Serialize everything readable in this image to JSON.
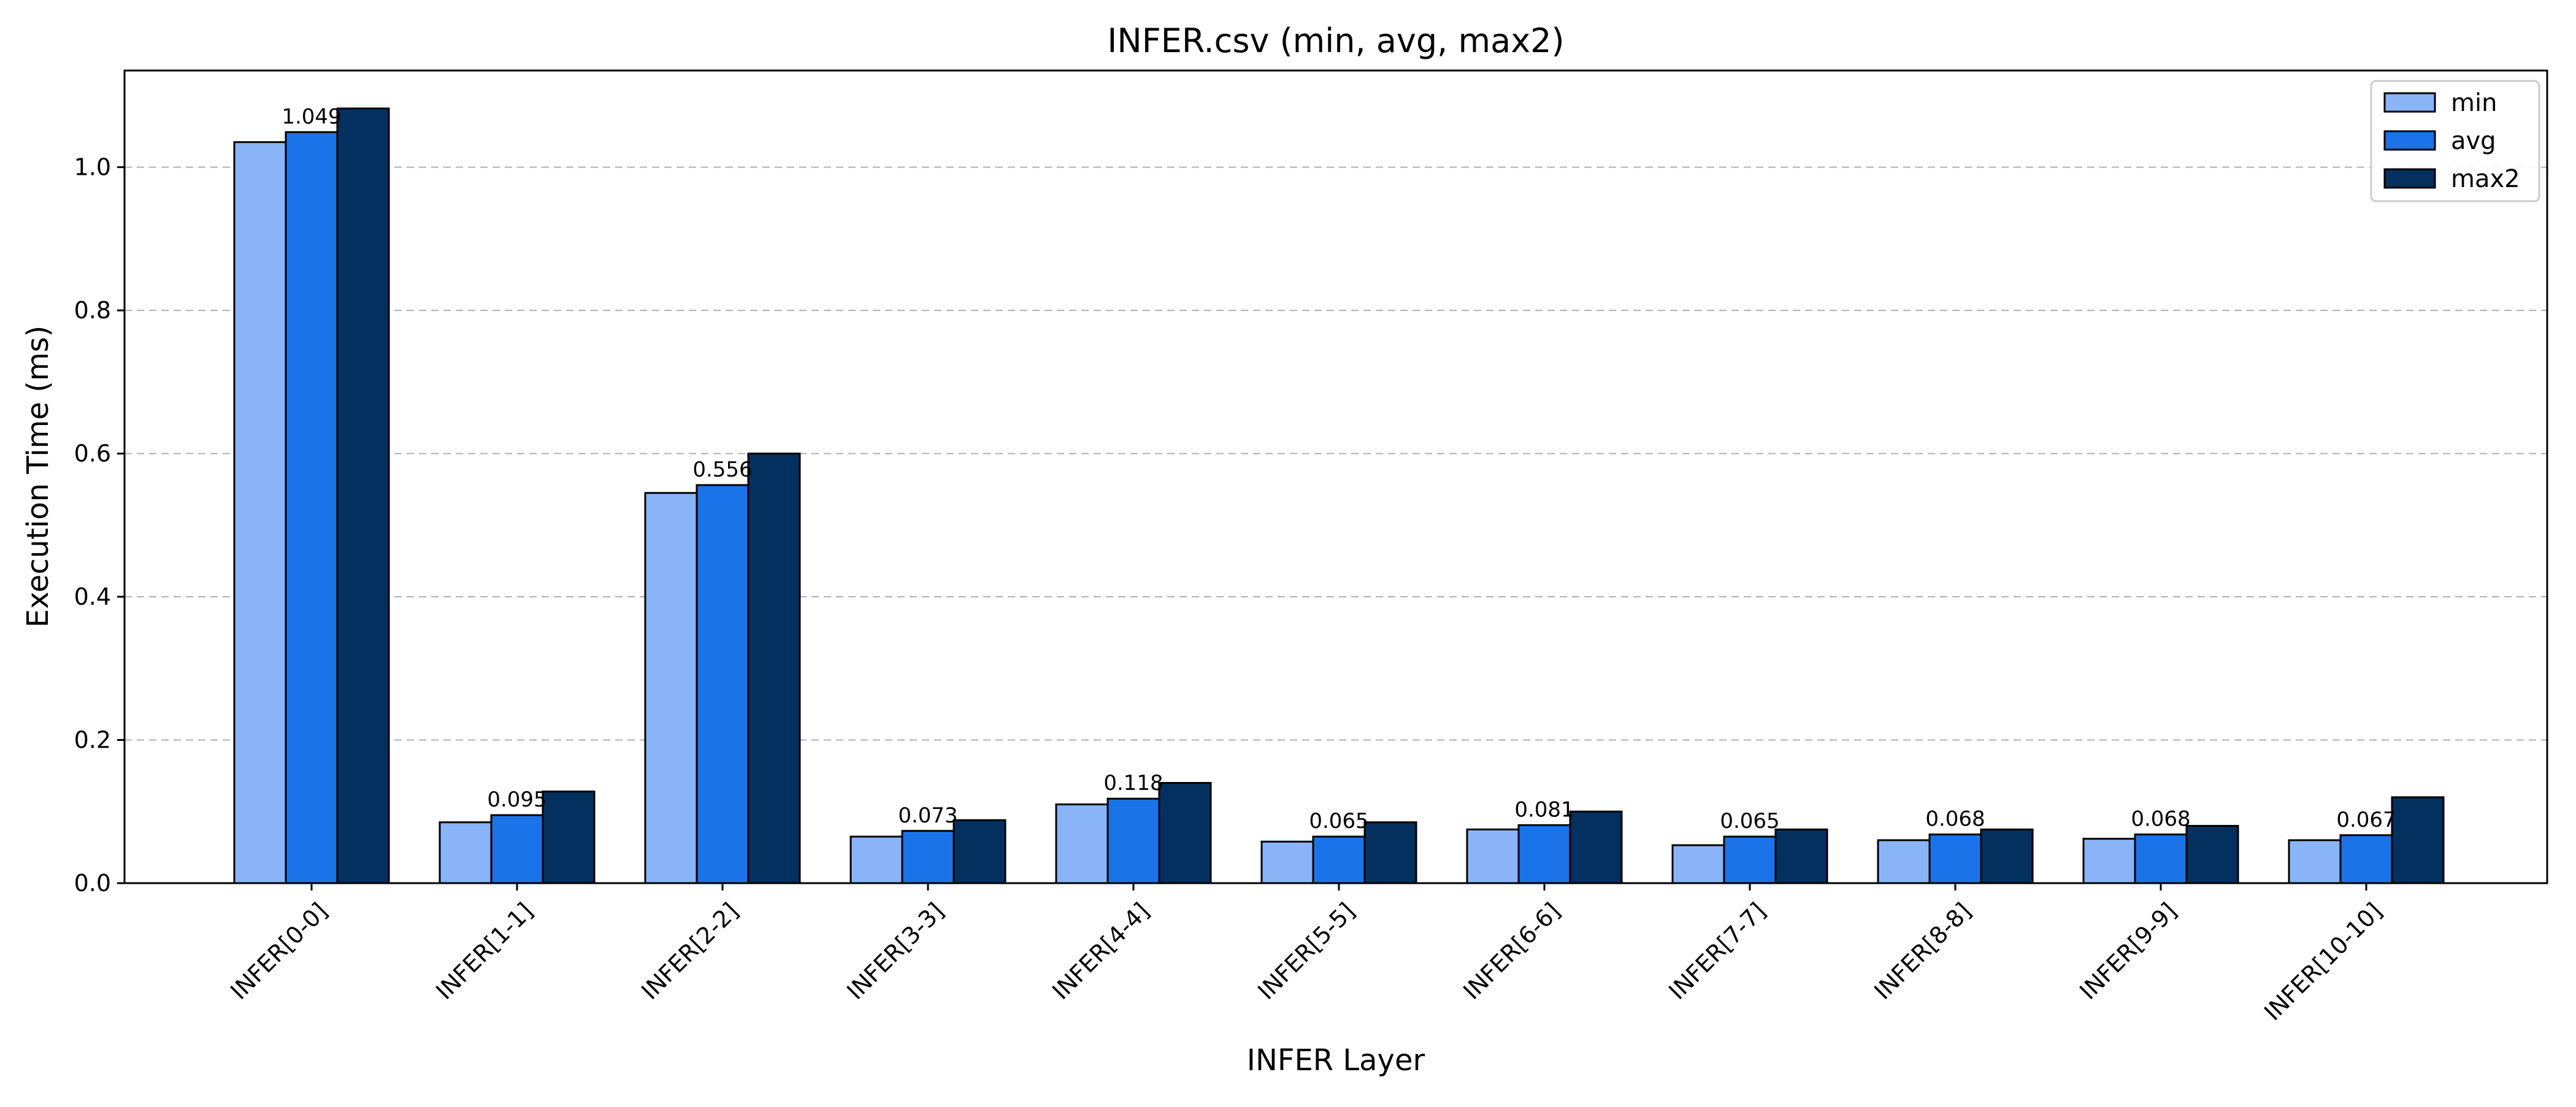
{
  "chart_data": {
    "type": "bar",
    "title": "INFER.csv (min, avg, max2)",
    "xlabel": "INFER Layer",
    "ylabel": "Execution Time (ms)",
    "ylim": [
      0,
      1.135
    ],
    "yticks": [
      0.0,
      0.2,
      0.4,
      0.6,
      0.8,
      1.0
    ],
    "ytick_labels": [
      "0.0",
      "0.2",
      "0.4",
      "0.6",
      "0.8",
      "1.0"
    ],
    "grid": "y-dashed",
    "legend_position": "top-right",
    "categories": [
      "INFER[0-0]",
      "INFER[1-1]",
      "INFER[2-2]",
      "INFER[3-3]",
      "INFER[4-4]",
      "INFER[5-5]",
      "INFER[6-6]",
      "INFER[7-7]",
      "INFER[8-8]",
      "INFER[9-9]",
      "INFER[10-10]"
    ],
    "series": [
      {
        "name": "min",
        "color": "#8ab4f8",
        "values": [
          1.035,
          0.085,
          0.545,
          0.065,
          0.11,
          0.058,
          0.075,
          0.053,
          0.06,
          0.062,
          0.06
        ]
      },
      {
        "name": "avg",
        "color": "#1a73e8",
        "values": [
          1.049,
          0.095,
          0.556,
          0.073,
          0.118,
          0.065,
          0.081,
          0.065,
          0.068,
          0.068,
          0.067
        ]
      },
      {
        "name": "max2",
        "color": "#03305f",
        "values": [
          1.082,
          0.128,
          0.6,
          0.088,
          0.14,
          0.085,
          0.1,
          0.075,
          0.075,
          0.08,
          0.12
        ]
      }
    ],
    "data_labels": [
      "1.049",
      "0.095",
      "0.556",
      "0.073",
      "0.118",
      "0.065",
      "0.081",
      "0.065",
      "0.068",
      "0.068",
      "0.067"
    ]
  }
}
